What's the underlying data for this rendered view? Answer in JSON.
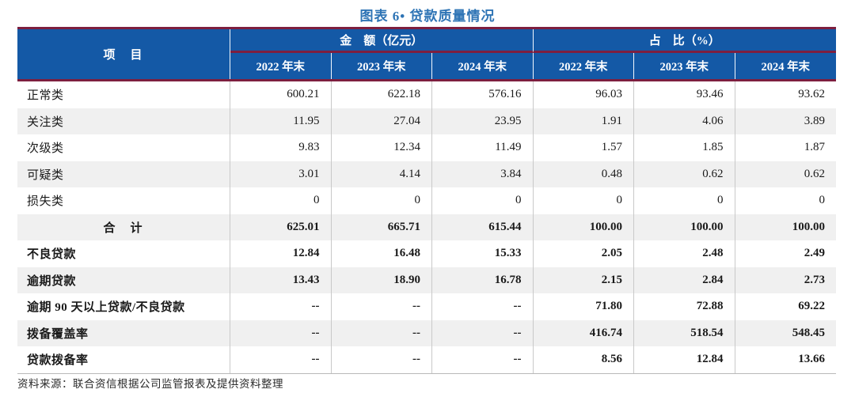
{
  "title": "图表 6• 贷款质量情况",
  "colors": {
    "header_bg": "#1459A6",
    "accent_line": "#7D1F3F",
    "title_color": "#2E74B5",
    "alt_row_bg": "#F0F0F0",
    "grid_line": "#C9C9C9"
  },
  "table": {
    "item_header": "项　目",
    "groups": [
      {
        "label": "金　额（亿元）",
        "columns": [
          "2022 年末",
          "2023 年末",
          "2024 年末"
        ]
      },
      {
        "label": "占　比（%）",
        "columns": [
          "2022 年末",
          "2023 年末",
          "2024 年末"
        ]
      }
    ],
    "rows": [
      {
        "label": "正常类",
        "values": [
          "600.21",
          "622.18",
          "576.16",
          "96.03",
          "93.46",
          "93.62"
        ],
        "bold": false,
        "center_label": false
      },
      {
        "label": "关注类",
        "values": [
          "11.95",
          "27.04",
          "23.95",
          "1.91",
          "4.06",
          "3.89"
        ],
        "bold": false,
        "center_label": false
      },
      {
        "label": "次级类",
        "values": [
          "9.83",
          "12.34",
          "11.49",
          "1.57",
          "1.85",
          "1.87"
        ],
        "bold": false,
        "center_label": false
      },
      {
        "label": "可疑类",
        "values": [
          "3.01",
          "4.14",
          "3.84",
          "0.48",
          "0.62",
          "0.62"
        ],
        "bold": false,
        "center_label": false
      },
      {
        "label": "损失类",
        "values": [
          "0",
          "0",
          "0",
          "0",
          "0",
          "0"
        ],
        "bold": false,
        "center_label": false
      },
      {
        "label": "合　计",
        "values": [
          "625.01",
          "665.71",
          "615.44",
          "100.00",
          "100.00",
          "100.00"
        ],
        "bold": true,
        "center_label": true
      },
      {
        "label": "不良贷款",
        "values": [
          "12.84",
          "16.48",
          "15.33",
          "2.05",
          "2.48",
          "2.49"
        ],
        "bold": true,
        "center_label": false
      },
      {
        "label": "逾期贷款",
        "values": [
          "13.43",
          "18.90",
          "16.78",
          "2.15",
          "2.84",
          "2.73"
        ],
        "bold": true,
        "center_label": false
      },
      {
        "label": "逾期 90 天以上贷款/不良贷款",
        "values": [
          "--",
          "--",
          "--",
          "71.80",
          "72.88",
          "69.22"
        ],
        "bold": true,
        "center_label": false
      },
      {
        "label": "拨备覆盖率",
        "values": [
          "--",
          "--",
          "--",
          "416.74",
          "518.54",
          "548.45"
        ],
        "bold": true,
        "center_label": false
      },
      {
        "label": "贷款拨备率",
        "values": [
          "--",
          "--",
          "--",
          "8.56",
          "12.84",
          "13.66"
        ],
        "bold": true,
        "center_label": false
      }
    ]
  },
  "footer": "资料来源：联合资信根据公司监管报表及提供资料整理"
}
